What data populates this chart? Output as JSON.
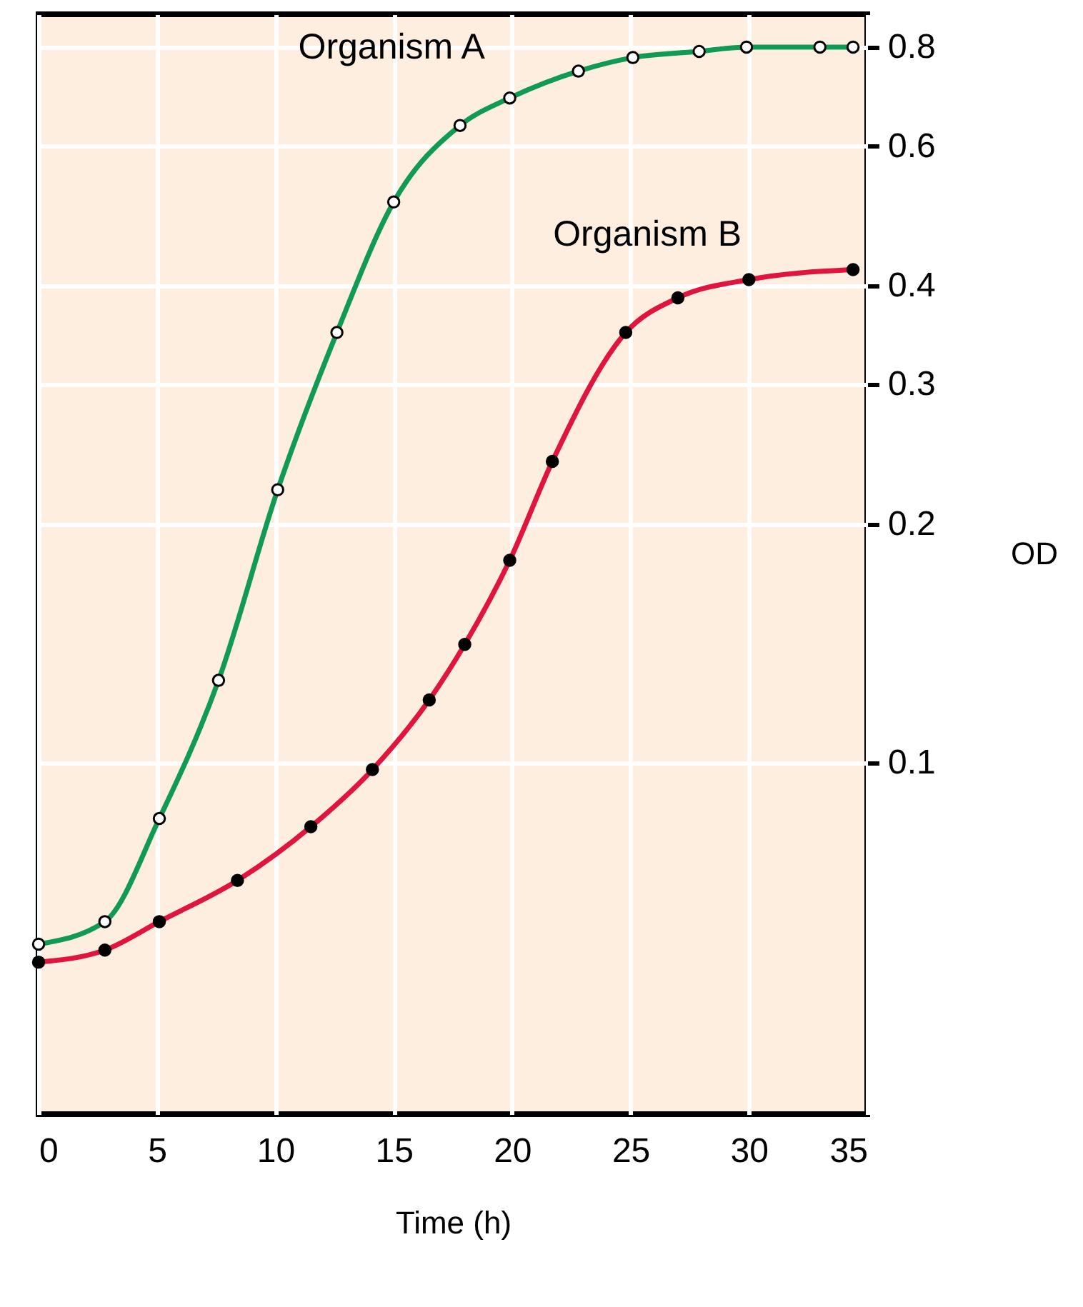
{
  "chart_data": {
    "type": "line",
    "xlabel": "Time (h)",
    "ylabel": "OD",
    "xlim": [
      0,
      35
    ],
    "xticks": [
      0,
      5,
      10,
      15,
      20,
      25,
      30,
      35
    ],
    "ylim": [
      0.036,
      0.88
    ],
    "yticks": [
      0.1,
      0.2,
      0.3,
      0.4,
      0.6,
      0.8
    ],
    "log": "y",
    "grid": true,
    "marker": "circle",
    "line_style": "solid",
    "series": [
      {
        "name": "Organism A",
        "color": "#119a54",
        "x": [
          0,
          2.8,
          5.1,
          7.6,
          10.1,
          12.6,
          15.0,
          17.8,
          19.9,
          22.8,
          25.1,
          27.9,
          29.9,
          33.0,
          34.4
        ],
        "values": [
          0.059,
          0.063,
          0.085,
          0.127,
          0.221,
          0.349,
          0.51,
          0.637,
          0.69,
          0.746,
          0.776,
          0.79,
          0.8,
          0.8,
          0.8
        ]
      },
      {
        "name": "Organism B",
        "color": "#e0143c",
        "x": [
          0,
          2.8,
          5.1,
          8.4,
          11.5,
          14.1,
          16.5,
          18.0,
          19.9,
          21.7,
          24.8,
          27.0,
          30.0,
          34.4
        ],
        "values": [
          0.056,
          0.058,
          0.063,
          0.071,
          0.083,
          0.098,
          0.12,
          0.141,
          0.18,
          0.24,
          0.349,
          0.386,
          0.407,
          0.419
        ]
      }
    ]
  }
}
